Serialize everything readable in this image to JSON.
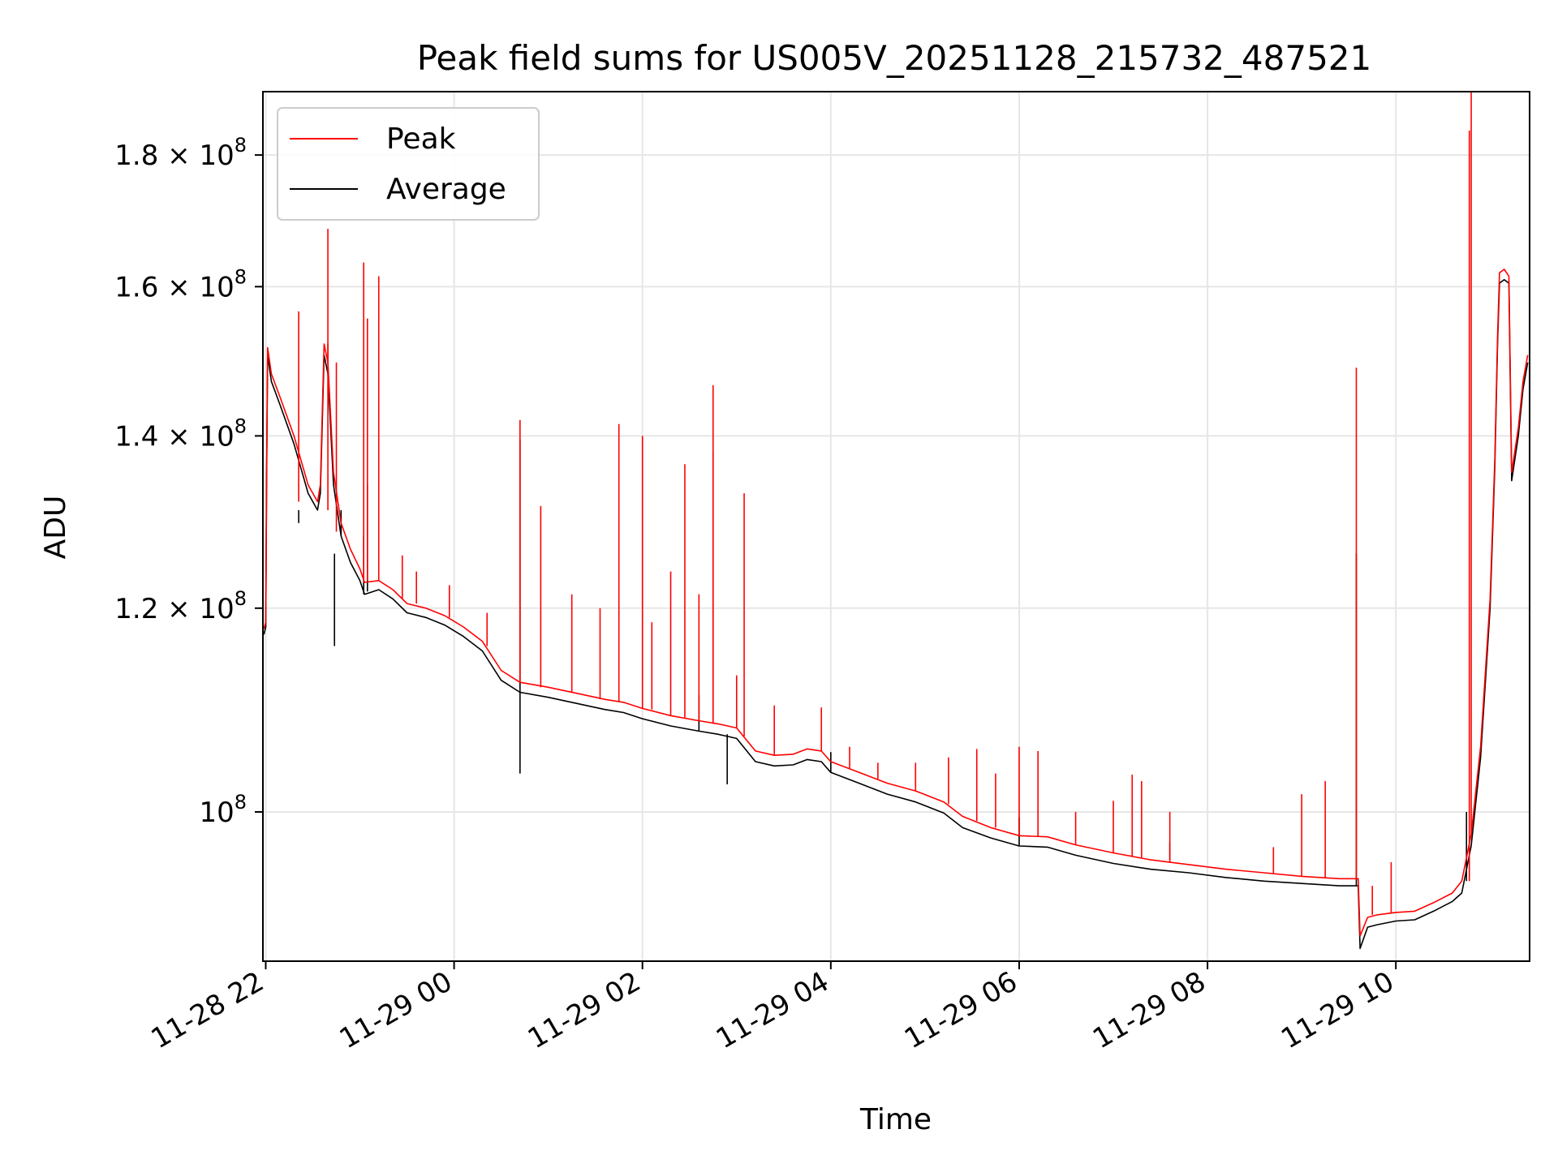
{
  "chart_data": {
    "type": "line",
    "title": "Peak field sums for US005V_20251128_215732_487521",
    "xlabel": "Time",
    "ylabel": "ADU",
    "x_unit": "hours since 11-28 22:00",
    "xlim": [
      -0.03,
      13.42
    ],
    "ylim": [
      87500000,
      190500000
    ],
    "yscale": "log",
    "grid": true,
    "legend": {
      "location": "upper-left",
      "entries": [
        "Peak",
        "Average"
      ]
    },
    "colors": {
      "Peak": "#ff0000",
      "Average": "#000000",
      "grid": "#e6e6e6"
    },
    "x_ticks": [
      {
        "value": 0,
        "label": "11-28 22"
      },
      {
        "value": 2,
        "label": "11-29 00"
      },
      {
        "value": 4,
        "label": "11-29 02"
      },
      {
        "value": 6,
        "label": "11-29 04"
      },
      {
        "value": 8,
        "label": "11-29 06"
      },
      {
        "value": 10,
        "label": "11-29 08"
      },
      {
        "value": 12,
        "label": "11-29 10"
      }
    ],
    "y_ticks": [
      {
        "value": 100000000,
        "mantissa": "",
        "exponent": "8",
        "label": "10^8"
      },
      {
        "value": 120000000,
        "mantissa": "1.2",
        "exponent": "8",
        "label": "1.2×10^8"
      },
      {
        "value": 140000000,
        "mantissa": "1.4",
        "exponent": "8",
        "label": "1.4×10^8"
      },
      {
        "value": 160000000,
        "mantissa": "1.6",
        "exponent": "8",
        "label": "1.6×10^8"
      },
      {
        "value": 180000000,
        "mantissa": "1.8",
        "exponent": "8",
        "label": "1.8×10^8"
      }
    ],
    "series": [
      {
        "name": "Average",
        "points": [
          [
            -0.02,
            117.2
          ],
          [
            0.0,
            118.0
          ],
          [
            0.01,
            135.0
          ],
          [
            0.02,
            150.5
          ],
          [
            0.06,
            147.0
          ],
          [
            0.15,
            144.0
          ],
          [
            0.3,
            139.0
          ],
          [
            0.45,
            133.0
          ],
          [
            0.55,
            131.0
          ],
          [
            0.58,
            133.0
          ],
          [
            0.62,
            150.5
          ],
          [
            0.66,
            148.0
          ],
          [
            0.72,
            134.0
          ],
          [
            0.8,
            128.0
          ],
          [
            0.9,
            125.0
          ],
          [
            1.0,
            123.0
          ],
          [
            1.05,
            121.5
          ],
          [
            1.2,
            122.0
          ],
          [
            1.35,
            121.0
          ],
          [
            1.5,
            119.5
          ],
          [
            1.7,
            119.0
          ],
          [
            1.9,
            118.2
          ],
          [
            2.1,
            117.0
          ],
          [
            2.3,
            115.5
          ],
          [
            2.5,
            112.5
          ],
          [
            2.7,
            111.3
          ],
          [
            3.0,
            110.8
          ],
          [
            3.3,
            110.2
          ],
          [
            3.6,
            109.6
          ],
          [
            3.8,
            109.3
          ],
          [
            4.0,
            108.7
          ],
          [
            4.3,
            108.0
          ],
          [
            4.6,
            107.5
          ],
          [
            4.8,
            107.2
          ],
          [
            5.0,
            106.8
          ],
          [
            5.2,
            104.6
          ],
          [
            5.4,
            104.2
          ],
          [
            5.6,
            104.3
          ],
          [
            5.75,
            104.8
          ],
          [
            5.9,
            104.6
          ],
          [
            6.0,
            103.6
          ],
          [
            6.3,
            102.6
          ],
          [
            6.6,
            101.6
          ],
          [
            6.9,
            100.9
          ],
          [
            7.2,
            99.9
          ],
          [
            7.4,
            98.6
          ],
          [
            7.7,
            97.7
          ],
          [
            8.0,
            97.0
          ],
          [
            8.3,
            96.9
          ],
          [
            8.6,
            96.2
          ],
          [
            9.0,
            95.5
          ],
          [
            9.4,
            95.0
          ],
          [
            9.8,
            94.7
          ],
          [
            10.2,
            94.3
          ],
          [
            10.6,
            94.0
          ],
          [
            11.0,
            93.8
          ],
          [
            11.4,
            93.6
          ],
          [
            11.6,
            93.6
          ],
          [
            11.62,
            88.5
          ],
          [
            11.7,
            90.2
          ],
          [
            11.8,
            90.4
          ],
          [
            12.0,
            90.7
          ],
          [
            12.2,
            90.8
          ],
          [
            12.4,
            91.5
          ],
          [
            12.6,
            92.3
          ],
          [
            12.7,
            93.0
          ],
          [
            12.8,
            97.0
          ],
          [
            12.9,
            105.0
          ],
          [
            13.0,
            120.0
          ],
          [
            13.05,
            136.0
          ],
          [
            13.08,
            152.0
          ],
          [
            13.1,
            160.5
          ],
          [
            13.15,
            161.0
          ],
          [
            13.2,
            160.5
          ],
          [
            13.23,
            134.5
          ],
          [
            13.3,
            140.0
          ],
          [
            13.35,
            146.0
          ],
          [
            13.4,
            149.5
          ]
        ],
        "spikes": [
          [
            0.35,
            131.0,
            129.5
          ],
          [
            0.73,
            126.0,
            116.0
          ],
          [
            0.8,
            128.0,
            131.0
          ],
          [
            1.04,
            121.5,
            128.0
          ],
          [
            1.08,
            121.8,
            134.0
          ],
          [
            2.7,
            111.3,
            139.5
          ],
          [
            2.7,
            111.3,
            103.5
          ],
          [
            4.6,
            107.5,
            111.0
          ],
          [
            4.9,
            107.2,
            102.5
          ],
          [
            6.0,
            103.6,
            105.5
          ],
          [
            8.0,
            97.0,
            99.5
          ],
          [
            9.6,
            95.8,
            97.3
          ],
          [
            11.58,
            93.6,
            126.0
          ],
          [
            12.75,
            94.0,
            100.0
          ]
        ]
      },
      {
        "name": "Peak",
        "points": [
          [
            -0.02,
            117.8
          ],
          [
            0.0,
            118.5
          ],
          [
            0.01,
            136.0
          ],
          [
            0.02,
            151.5
          ],
          [
            0.06,
            148.0
          ],
          [
            0.15,
            145.0
          ],
          [
            0.3,
            140.0
          ],
          [
            0.45,
            134.0
          ],
          [
            0.55,
            132.0
          ],
          [
            0.58,
            134.0
          ],
          [
            0.62,
            152.0
          ],
          [
            0.66,
            149.5
          ],
          [
            0.72,
            135.5
          ],
          [
            0.8,
            129.5
          ],
          [
            0.9,
            126.5
          ],
          [
            1.0,
            124.3
          ],
          [
            1.05,
            122.8
          ],
          [
            1.2,
            123.0
          ],
          [
            1.35,
            122.0
          ],
          [
            1.5,
            120.5
          ],
          [
            1.7,
            120.0
          ],
          [
            1.9,
            119.2
          ],
          [
            2.1,
            118.0
          ],
          [
            2.3,
            116.5
          ],
          [
            2.5,
            113.5
          ],
          [
            2.7,
            112.3
          ],
          [
            3.0,
            111.8
          ],
          [
            3.3,
            111.2
          ],
          [
            3.6,
            110.6
          ],
          [
            3.8,
            110.3
          ],
          [
            4.0,
            109.7
          ],
          [
            4.3,
            109.0
          ],
          [
            4.6,
            108.5
          ],
          [
            4.8,
            108.2
          ],
          [
            5.0,
            107.8
          ],
          [
            5.2,
            105.6
          ],
          [
            5.4,
            105.2
          ],
          [
            5.6,
            105.3
          ],
          [
            5.75,
            105.8
          ],
          [
            5.9,
            105.6
          ],
          [
            6.0,
            104.6
          ],
          [
            6.3,
            103.6
          ],
          [
            6.6,
            102.6
          ],
          [
            6.9,
            101.9
          ],
          [
            7.2,
            100.9
          ],
          [
            7.4,
            99.6
          ],
          [
            7.7,
            98.6
          ],
          [
            8.0,
            97.9
          ],
          [
            8.3,
            97.8
          ],
          [
            8.6,
            97.1
          ],
          [
            9.0,
            96.4
          ],
          [
            9.4,
            95.8
          ],
          [
            9.8,
            95.4
          ],
          [
            10.2,
            95.0
          ],
          [
            10.6,
            94.7
          ],
          [
            11.0,
            94.4
          ],
          [
            11.4,
            94.2
          ],
          [
            11.6,
            94.2
          ],
          [
            11.62,
            89.5
          ],
          [
            11.7,
            91.0
          ],
          [
            11.8,
            91.2
          ],
          [
            12.0,
            91.4
          ],
          [
            12.2,
            91.5
          ],
          [
            12.4,
            92.2
          ],
          [
            12.6,
            93.0
          ],
          [
            12.7,
            94.0
          ],
          [
            12.8,
            98.0
          ],
          [
            12.9,
            106.0
          ],
          [
            13.0,
            121.0
          ],
          [
            13.05,
            137.0
          ],
          [
            13.08,
            153.0
          ],
          [
            13.1,
            162.0
          ],
          [
            13.15,
            162.5
          ],
          [
            13.2,
            161.5
          ],
          [
            13.23,
            135.5
          ],
          [
            13.3,
            141.0
          ],
          [
            13.35,
            147.0
          ],
          [
            13.4,
            150.5
          ]
        ],
        "spikes": [
          [
            0.35,
            132.0,
            156.5
          ],
          [
            0.66,
            149.5,
            152.0
          ],
          [
            0.66,
            131.0,
            168.5
          ],
          [
            0.75,
            128.5,
            149.5
          ],
          [
            1.04,
            122.8,
            163.5
          ],
          [
            1.08,
            123.0,
            155.5
          ],
          [
            1.2,
            123.0,
            161.5
          ],
          [
            1.45,
            121.0,
            125.8
          ],
          [
            1.6,
            120.5,
            124.0
          ],
          [
            1.95,
            119.0,
            122.5
          ],
          [
            2.35,
            116.0,
            119.5
          ],
          [
            2.7,
            112.3,
            142.0
          ],
          [
            2.92,
            111.8,
            131.5
          ],
          [
            3.25,
            111.3,
            121.5
          ],
          [
            3.55,
            110.6,
            120.0
          ],
          [
            3.75,
            110.3,
            141.5
          ],
          [
            4.0,
            109.7,
            140.0
          ],
          [
            4.1,
            109.6,
            118.5
          ],
          [
            4.3,
            109.0,
            124.0
          ],
          [
            4.45,
            108.8,
            136.5
          ],
          [
            4.6,
            108.5,
            121.5
          ],
          [
            4.75,
            108.3,
            146.5
          ],
          [
            4.75,
            108.3,
            138.0
          ],
          [
            5.0,
            107.8,
            113.0
          ],
          [
            5.08,
            107.0,
            133.0
          ],
          [
            5.4,
            105.2,
            110.0
          ],
          [
            5.9,
            105.6,
            109.8
          ],
          [
            6.2,
            104.0,
            106.0
          ],
          [
            6.5,
            103.0,
            104.5
          ],
          [
            6.9,
            101.9,
            104.5
          ],
          [
            7.25,
            100.7,
            105.0
          ],
          [
            7.55,
            99.2,
            105.8
          ],
          [
            7.75,
            98.6,
            103.5
          ],
          [
            8.0,
            97.9,
            106.0
          ],
          [
            8.2,
            97.8,
            105.6
          ],
          [
            8.6,
            97.1,
            100.0
          ],
          [
            9.0,
            96.4,
            101.0
          ],
          [
            9.2,
            96.1,
            103.4
          ],
          [
            9.3,
            96.0,
            102.8
          ],
          [
            9.6,
            95.6,
            100.0
          ],
          [
            10.7,
            94.6,
            96.9
          ],
          [
            11.0,
            94.4,
            101.6
          ],
          [
            11.25,
            94.3,
            102.8
          ],
          [
            11.58,
            94.2,
            148.8
          ],
          [
            11.75,
            91.2,
            93.6
          ],
          [
            11.95,
            91.4,
            95.6
          ],
          [
            12.8,
            98.0,
            190.5
          ],
          [
            12.78,
            94.0,
            184.0
          ]
        ]
      }
    ]
  }
}
